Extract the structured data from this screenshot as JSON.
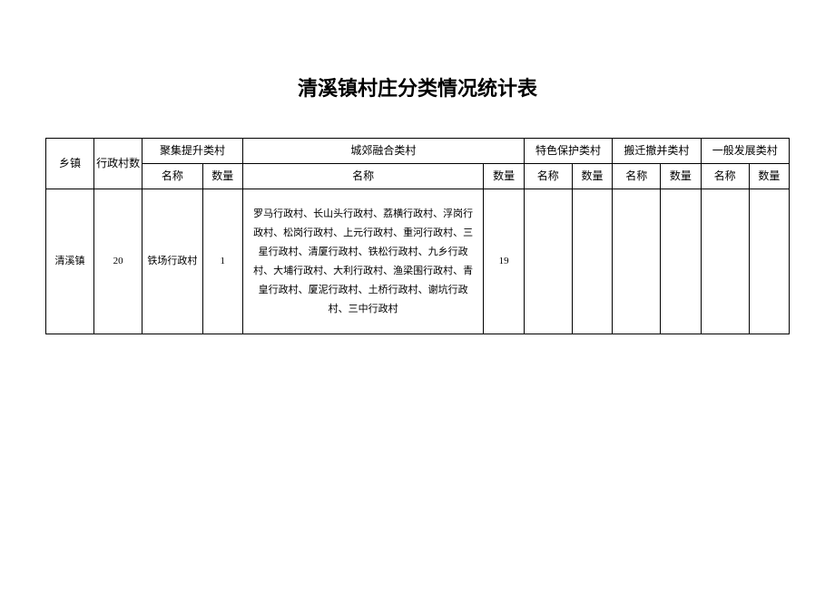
{
  "title": "清溪镇村庄分类情况统计表",
  "headers": {
    "town": "乡镇",
    "village_count": "行政村数",
    "cat1": "聚集提升类村",
    "cat2": "城郊融合类村",
    "cat3": "特色保护类村",
    "cat4": "搬迁撤并类村",
    "cat5": "一般发展类村",
    "name": "名称",
    "count": "数量"
  },
  "row": {
    "town": "清溪镇",
    "village_count": "20",
    "cat1_name": "铁场行政村",
    "cat1_count": "1",
    "cat2_name": "罗马行政村、长山头行政村、荔横行政村、浮岗行政村、松岗行政村、上元行政村、重河行政村、三星行政村、清厦行政村、铁松行政村、九乡行政村、大埔行政村、大利行政村、渔梁围行政村、青皇行政村、厦泥行政村、土桥行政村、谢坑行政村、三中行政村",
    "cat2_count": "19",
    "cat3_name": "",
    "cat3_count": "",
    "cat4_name": "",
    "cat4_count": "",
    "cat5_name": "",
    "cat5_count": ""
  },
  "styling": {
    "title_fontsize": 22,
    "header_fontsize": 12,
    "cell_fontsize": 11,
    "border_color": "#000000",
    "background_color": "#ffffff",
    "text_color": "#000000"
  }
}
